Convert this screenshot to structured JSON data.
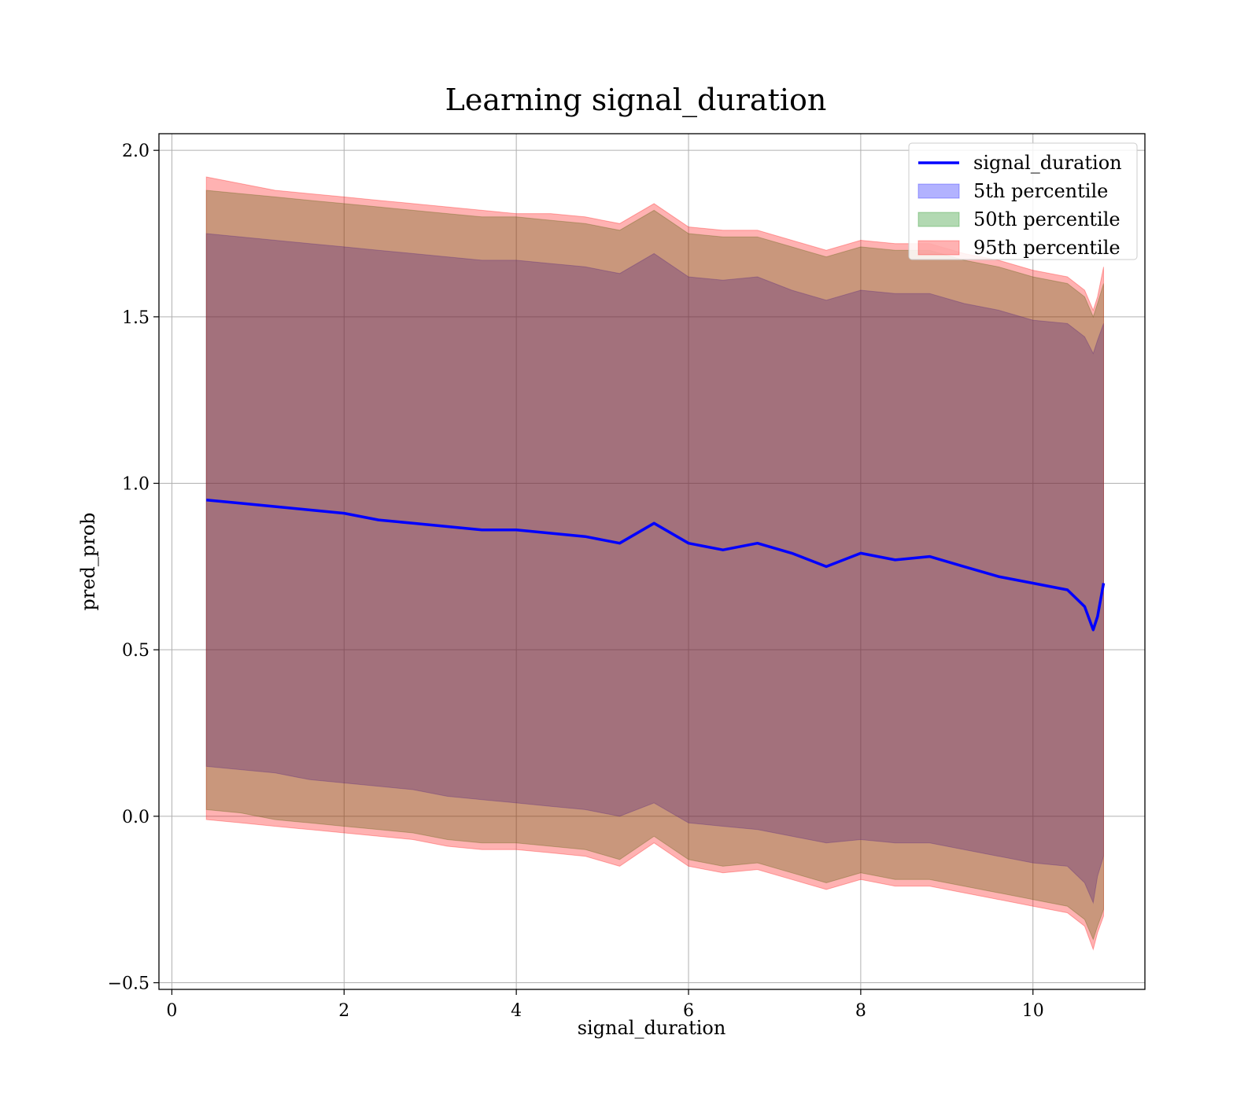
{
  "chart_data": {
    "type": "area",
    "title": "Learning signal_duration",
    "xlabel": "signal_duration",
    "ylabel": "pred_prob",
    "xlim": [
      -0.15,
      11.3
    ],
    "ylim": [
      -0.52,
      2.05
    ],
    "xticks": [
      0,
      2,
      4,
      6,
      8,
      10
    ],
    "yticks": [
      -0.5,
      0.0,
      0.5,
      1.0,
      1.5,
      2.0
    ],
    "xtick_labels": [
      "0",
      "2",
      "4",
      "6",
      "8",
      "10"
    ],
    "ytick_labels": [
      "−0.5",
      "0.0",
      "0.5",
      "1.0",
      "1.5",
      "2.0"
    ],
    "grid": true,
    "legend_position": "upper right",
    "x": [
      0.4,
      0.8,
      1.2,
      1.6,
      2.0,
      2.4,
      2.8,
      3.2,
      3.6,
      4.0,
      4.4,
      4.8,
      5.2,
      5.6,
      6.0,
      6.4,
      6.8,
      7.2,
      7.6,
      8.0,
      8.4,
      8.8,
      9.2,
      9.6,
      10.0,
      10.4,
      10.6,
      10.7,
      10.75,
      10.82
    ],
    "series": [
      {
        "name": "signal_duration",
        "kind": "line",
        "color": "#0000ff",
        "values": [
          0.95,
          0.94,
          0.93,
          0.92,
          0.91,
          0.89,
          0.88,
          0.87,
          0.86,
          0.86,
          0.85,
          0.84,
          0.82,
          0.88,
          0.82,
          0.8,
          0.82,
          0.79,
          0.75,
          0.79,
          0.77,
          0.78,
          0.75,
          0.72,
          0.7,
          0.68,
          0.63,
          0.56,
          0.6,
          0.7
        ]
      },
      {
        "name": "5th percentile",
        "kind": "band",
        "color": "#0000ff",
        "lower": [
          0.15,
          0.14,
          0.13,
          0.11,
          0.1,
          0.09,
          0.08,
          0.06,
          0.05,
          0.04,
          0.03,
          0.02,
          0.0,
          0.04,
          -0.02,
          -0.03,
          -0.04,
          -0.06,
          -0.08,
          -0.07,
          -0.08,
          -0.08,
          -0.1,
          -0.12,
          -0.14,
          -0.15,
          -0.2,
          -0.26,
          -0.18,
          -0.12
        ],
        "upper": [
          1.75,
          1.74,
          1.73,
          1.72,
          1.71,
          1.7,
          1.69,
          1.68,
          1.67,
          1.67,
          1.66,
          1.65,
          1.63,
          1.69,
          1.62,
          1.61,
          1.62,
          1.58,
          1.55,
          1.58,
          1.57,
          1.57,
          1.54,
          1.52,
          1.49,
          1.48,
          1.44,
          1.39,
          1.43,
          1.48
        ]
      },
      {
        "name": "50th percentile",
        "kind": "band",
        "color": "#008000",
        "lower": [
          0.02,
          0.01,
          -0.01,
          -0.02,
          -0.03,
          -0.04,
          -0.05,
          -0.07,
          -0.08,
          -0.08,
          -0.09,
          -0.1,
          -0.13,
          -0.06,
          -0.13,
          -0.15,
          -0.14,
          -0.17,
          -0.2,
          -0.17,
          -0.19,
          -0.19,
          -0.21,
          -0.23,
          -0.25,
          -0.27,
          -0.31,
          -0.37,
          -0.33,
          -0.28
        ],
        "upper": [
          1.88,
          1.87,
          1.86,
          1.85,
          1.84,
          1.83,
          1.82,
          1.81,
          1.8,
          1.8,
          1.79,
          1.78,
          1.76,
          1.82,
          1.75,
          1.74,
          1.74,
          1.71,
          1.68,
          1.71,
          1.7,
          1.7,
          1.67,
          1.65,
          1.62,
          1.6,
          1.56,
          1.5,
          1.54,
          1.6
        ]
      },
      {
        "name": "95th percentile",
        "kind": "band",
        "color": "#ff0000",
        "lower": [
          -0.01,
          -0.02,
          -0.03,
          -0.04,
          -0.05,
          -0.06,
          -0.07,
          -0.09,
          -0.1,
          -0.1,
          -0.11,
          -0.12,
          -0.15,
          -0.08,
          -0.15,
          -0.17,
          -0.16,
          -0.19,
          -0.22,
          -0.19,
          -0.21,
          -0.21,
          -0.23,
          -0.25,
          -0.27,
          -0.29,
          -0.33,
          -0.4,
          -0.35,
          -0.3
        ],
        "upper": [
          1.92,
          1.9,
          1.88,
          1.87,
          1.86,
          1.85,
          1.84,
          1.83,
          1.82,
          1.81,
          1.81,
          1.8,
          1.78,
          1.84,
          1.77,
          1.76,
          1.76,
          1.73,
          1.7,
          1.73,
          1.72,
          1.72,
          1.69,
          1.67,
          1.64,
          1.62,
          1.58,
          1.52,
          1.56,
          1.65
        ]
      }
    ]
  }
}
